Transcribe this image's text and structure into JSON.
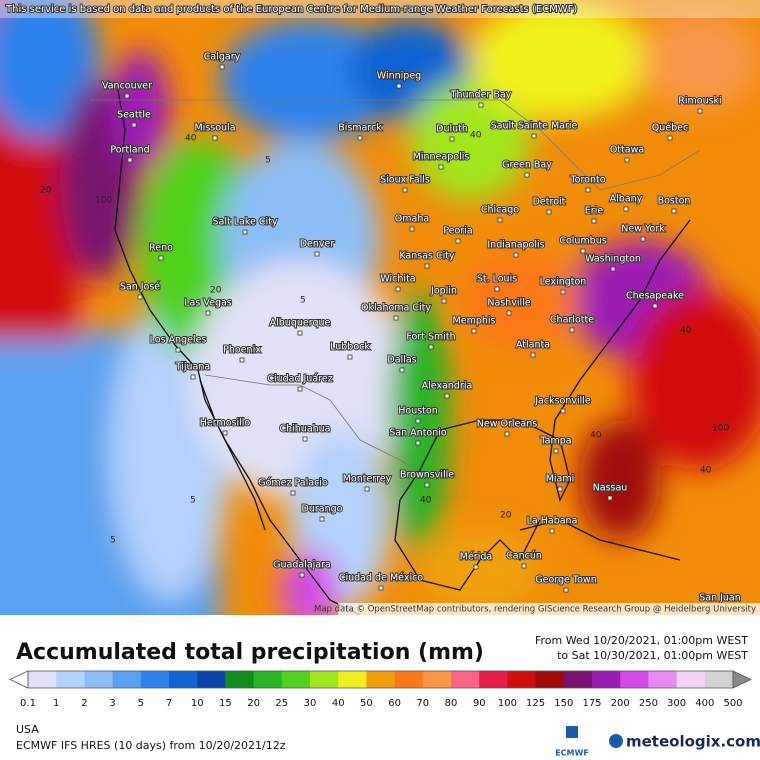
{
  "header": {
    "notice": "This service is based on data and products of the European Centre for Medium-range Weather Forecasts (ECMWF)"
  },
  "map": {
    "attribution": "Map data © OpenStreetMap contributors, rendering GIScience Research Group @ Heidelberg University",
    "cities": [
      "Calgary",
      "Winnipeg",
      "Thunder Bay",
      "Vancouver",
      "Seattle",
      "Missoula",
      "Bismarck",
      "Duluth",
      "Sault Sainte Marie",
      "Rimouski",
      "Québec",
      "Ottawa",
      "Portland",
      "Minneapolis",
      "Green Bay",
      "Toronto",
      "Sioux Falls",
      "Albany",
      "Boston",
      "Detroit",
      "Erie",
      "Chicago",
      "Omaha",
      "Salt Lake City",
      "New York",
      "Reno",
      "Peoria",
      "Denver",
      "Indianapolis",
      "Columbus",
      "Kansas City",
      "Washington",
      "St. Louis",
      "Wichita",
      "Joplin",
      "Lexington",
      "San José",
      "Chesapeake",
      "Las Vegas",
      "Nashville",
      "Oklahoma City",
      "Memphis",
      "Charlotte",
      "Albuquerque",
      "Fort Smith",
      "Los Angeles",
      "Phoenix",
      "Lubbock",
      "Atlanta",
      "Dallas",
      "Tijuana",
      "Ciudad Juárez",
      "Alexandria",
      "Jacksonville",
      "Houston",
      "New Orleans",
      "Hermosillo",
      "Chihuahua",
      "San Antonio",
      "Tampa",
      "Brownsville",
      "Miami",
      "Monterrey",
      "Gómez Palacio",
      "Nassau",
      "Durango",
      "La Habana",
      "Mérida",
      "Cancún",
      "Guadalajara",
      "Ciudad de México",
      "George Town",
      "San Juan"
    ],
    "contours": [
      "40",
      "5",
      "20",
      "100",
      "40",
      "5",
      "40",
      "20",
      "5",
      "40",
      "100",
      "40",
      "5",
      "40",
      "20"
    ]
  },
  "legend": {
    "title": "Accumulated total precipitation (mm)",
    "from": "From Wed 10/20/2021, 01:00pm WEST",
    "to": "to Sat 10/30/2021, 01:00pm WEST",
    "ticks": [
      "0.1",
      "1",
      "2",
      "3",
      "5",
      "7",
      "10",
      "15",
      "20",
      "25",
      "30",
      "40",
      "50",
      "60",
      "70",
      "80",
      "90",
      "100",
      "125",
      "150",
      "175",
      "200",
      "250",
      "300",
      "400",
      "500"
    ],
    "colors": [
      "#e1e1f7",
      "#b4d2fa",
      "#8cbef5",
      "#5aa0f0",
      "#2d82eb",
      "#0f64d2",
      "#0a46aa",
      "#128c1e",
      "#28b428",
      "#50d21e",
      "#a0e61e",
      "#f0f01e",
      "#f0a00a",
      "#fa7819",
      "#fa9646",
      "#fa6482",
      "#e61e46",
      "#d20f0f",
      "#a00a0a",
      "#78126e",
      "#9b1eb4",
      "#d24be6",
      "#e68cf0",
      "#f5d2f5",
      "#d2d2d2"
    ]
  },
  "footer": {
    "region": "USA",
    "model": "ECMWF IFS HRES (10 days) from 10/20/2021/12z",
    "ecmwf": "ECMWF",
    "brand": "meteologix.com"
  }
}
